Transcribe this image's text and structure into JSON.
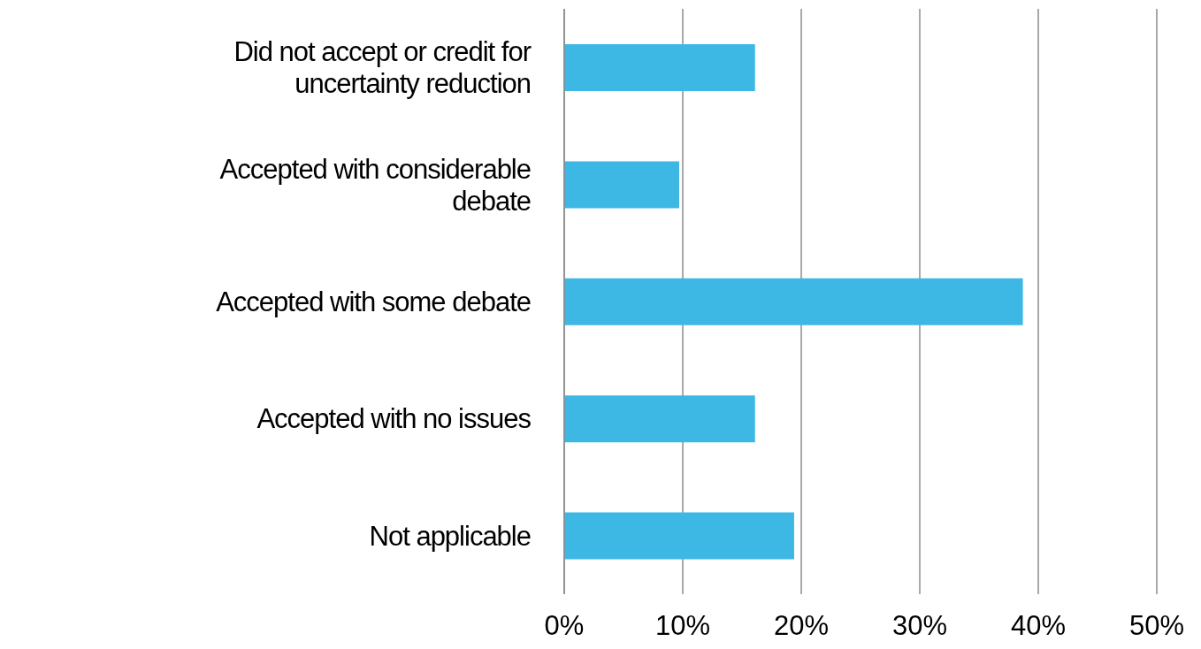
{
  "chart_data": {
    "type": "bar",
    "orientation": "horizontal",
    "categories": [
      "Did not accept or credit for uncertainty reduction",
      "Accepted with considerable debate",
      "Accepted with some debate",
      "Accepted with no issues",
      "Not applicable"
    ],
    "values": [
      16.1,
      9.7,
      38.7,
      16.1,
      19.4
    ],
    "color": "#3db7e4",
    "xlim": [
      0,
      50
    ],
    "xticks": [
      {
        "value": 0,
        "label": "0%"
      },
      {
        "value": 10,
        "label": "10%"
      },
      {
        "value": 20,
        "label": "20%"
      },
      {
        "value": 30,
        "label": "30%"
      },
      {
        "value": 40,
        "label": "40%"
      },
      {
        "value": 50,
        "label": "50%"
      }
    ],
    "grid": "x"
  }
}
